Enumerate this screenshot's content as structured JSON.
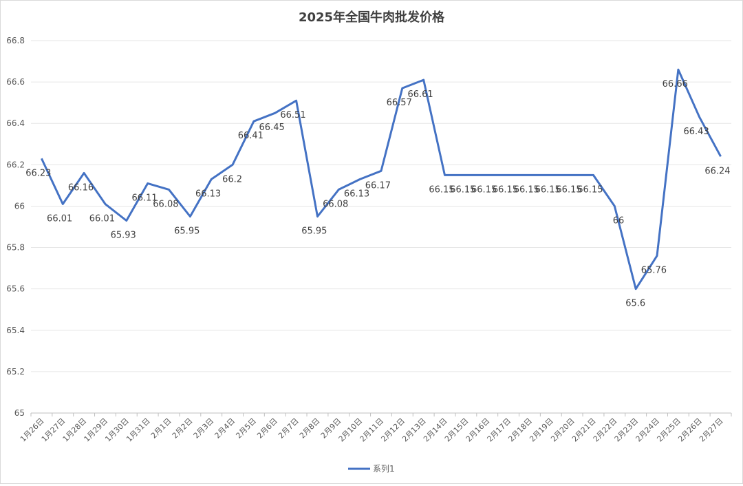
{
  "chart_data": {
    "type": "line",
    "title": "2025年全国牛肉批发价格",
    "categories": [
      "1月26日",
      "1月27日",
      "1月28日",
      "1月29日",
      "1月30日",
      "1月31日",
      "2月1日",
      "2月2日",
      "2月3日",
      "2月4日",
      "2月5日",
      "2月6日",
      "2月7日",
      "2月8日",
      "2月9日",
      "2月10日",
      "2月11日",
      "2月12日",
      "2月13日",
      "2月14日",
      "2月15日",
      "2月16日",
      "2月17日",
      "2月18日",
      "2月19日",
      "2月20日",
      "2月21日",
      "2月22日",
      "2月23日",
      "2月24日",
      "2月25日",
      "2月26日",
      "2月27日"
    ],
    "series": [
      {
        "name": "系列1",
        "color": "#4472c4",
        "values": [
          66.23,
          66.01,
          66.16,
          66.01,
          65.93,
          66.11,
          66.08,
          65.95,
          66.13,
          66.2,
          66.41,
          66.45,
          66.51,
          65.95,
          66.08,
          66.13,
          66.17,
          66.57,
          66.61,
          66.15,
          66.15,
          66.15,
          66.15,
          66.15,
          66.15,
          66.15,
          66.15,
          66,
          65.6,
          65.76,
          66.66,
          66.43,
          66.24
        ],
        "labels": [
          "66.23",
          "66.01",
          "66.16",
          "66.01",
          "65.93",
          "66.11",
          "66.08",
          "65.95",
          "66.13",
          "66.2",
          "66.41",
          "66.45",
          "66.51",
          "65.95",
          "66.08",
          "66.13",
          "66.17",
          "66.57",
          "66.61",
          "66.15",
          "66.15",
          "66.15",
          "66.15",
          "66.15",
          "66.15",
          "66.15",
          "66.15",
          "66",
          "65.6",
          "65.76",
          "66.66",
          "66.43",
          "66.24"
        ]
      }
    ],
    "ylim": [
      65,
      66.8
    ],
    "yticks": [
      "65",
      "65.2",
      "65.4",
      "65.6",
      "65.8",
      "66",
      "66.2",
      "66.4",
      "66.6",
      "66.8"
    ],
    "grid": true,
    "legend": "bottom",
    "xlabel": "",
    "ylabel": ""
  }
}
